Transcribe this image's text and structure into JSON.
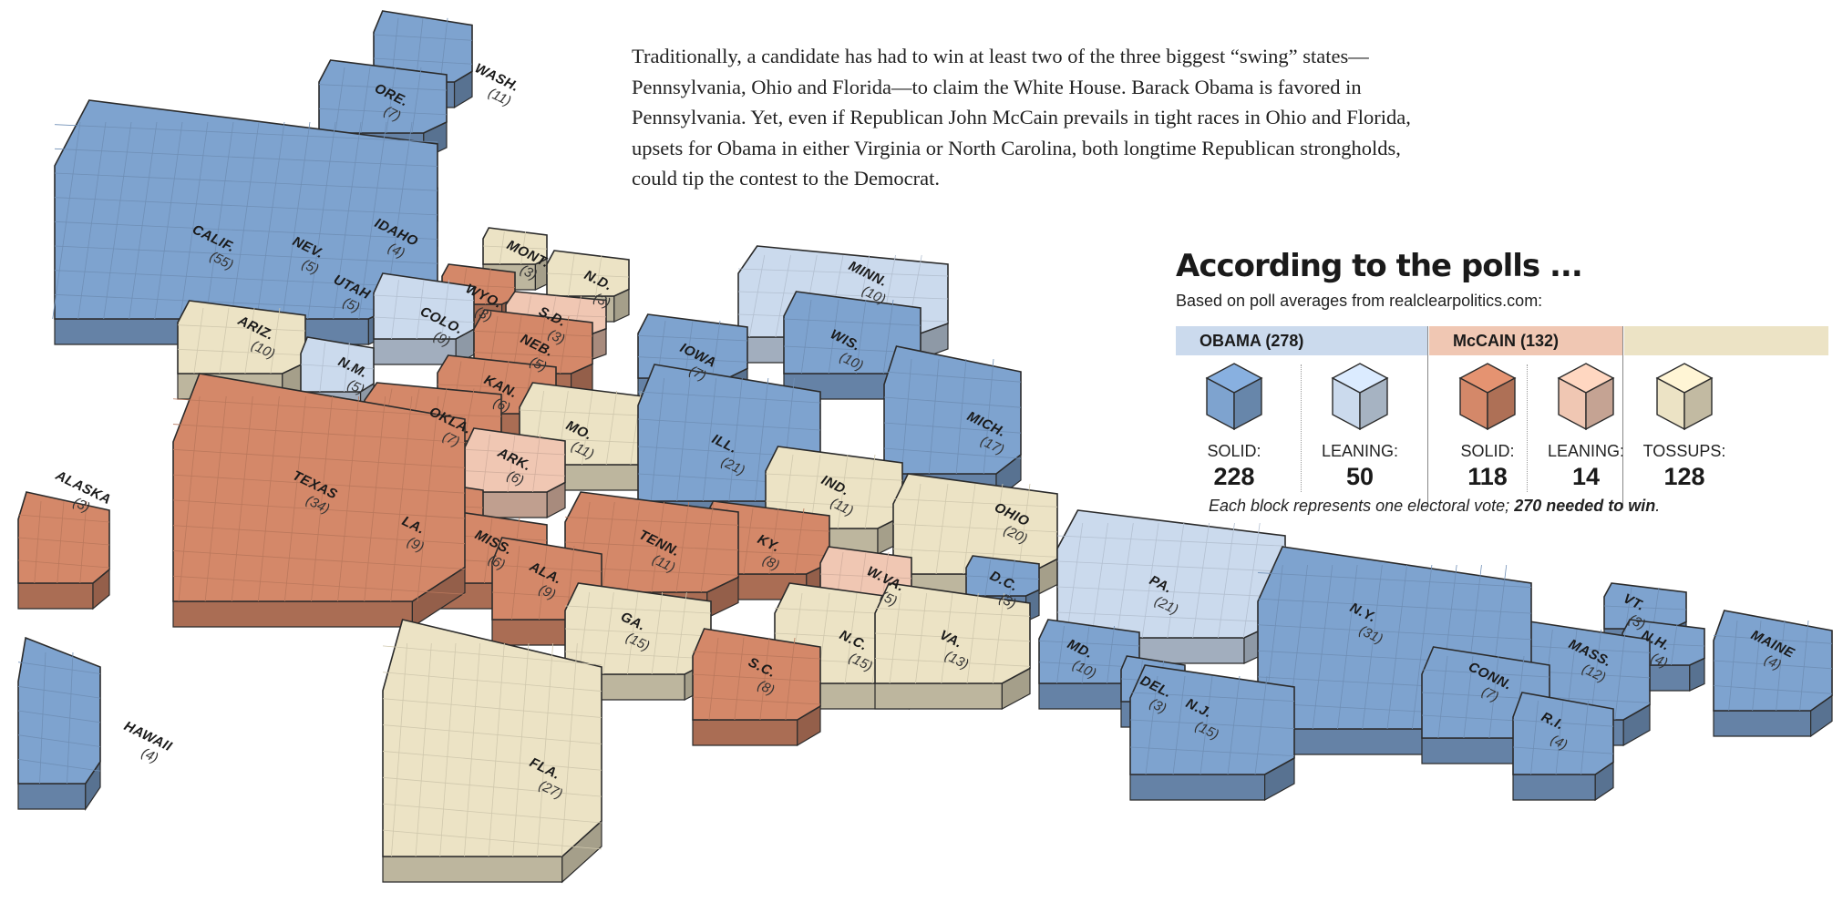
{
  "colors": {
    "solid_obama": "#7ea3cf",
    "leaning_obama": "#cbdaed",
    "solid_mccain": "#d48869",
    "leaning_mccain": "#f0c7b3",
    "tossup": "#ece3c5",
    "edge": "#2b2b2b"
  },
  "intro_text": "Traditionally, a candidate has had to win at least two of the three biggest “swing” states—Pennsylvania, Ohio and Florida—to claim the White House. Barack Obama is favored in Pennsylvania. Yet, even if Republican John McCain prevails in tight races in Ohio and Florida, upsets for Obama in either Virginia or North Carolina, both longtime Republican strongholds, could tip the contest to the Democrat.",
  "legend": {
    "title": "According to the polls ...",
    "subtitle": "Based on poll averages from realclearpolitics.com:",
    "obama_label": "OBAMA (278)",
    "mccain_label": "McCAIN (132)",
    "categories": [
      {
        "label": "SOLID:",
        "value": "228",
        "color_key": "solid_obama"
      },
      {
        "label": "LEANING:",
        "value": "50",
        "color_key": "leaning_obama"
      },
      {
        "label": "SOLID:",
        "value": "118",
        "color_key": "solid_mccain"
      },
      {
        "label": "LEANING:",
        "value": "14",
        "color_key": "leaning_mccain"
      },
      {
        "label": "TOSSUPS:",
        "value": "128",
        "color_key": "tossup"
      }
    ],
    "footnote_prefix": "Each block represents one electoral vote; ",
    "footnote_bold": "270 needed to win",
    "footnote_suffix": "."
  },
  "states": [
    {
      "name": "WASH.",
      "ev": "(11)",
      "status": "solid_obama"
    },
    {
      "name": "ORE.",
      "ev": "(7)",
      "status": "solid_obama"
    },
    {
      "name": "CALIF.",
      "ev": "(55)",
      "status": "solid_obama"
    },
    {
      "name": "NEV.",
      "ev": "(5)",
      "status": "leaning_obama"
    },
    {
      "name": "IDAHO",
      "ev": "(4)",
      "status": "solid_mccain"
    },
    {
      "name": "UTAH",
      "ev": "(5)",
      "status": "solid_mccain"
    },
    {
      "name": "ARIZ.",
      "ev": "(10)",
      "status": "tossup"
    },
    {
      "name": "MONT.",
      "ev": "(3)",
      "status": "tossup"
    },
    {
      "name": "WYO.",
      "ev": "(3)",
      "status": "solid_mccain"
    },
    {
      "name": "COLO.",
      "ev": "(9)",
      "status": "leaning_obama"
    },
    {
      "name": "N.M.",
      "ev": "(5)",
      "status": "leaning_obama"
    },
    {
      "name": "N.D.",
      "ev": "(3)",
      "status": "tossup"
    },
    {
      "name": "S.D.",
      "ev": "(3)",
      "status": "leaning_mccain"
    },
    {
      "name": "NEB.",
      "ev": "(5)",
      "status": "solid_mccain"
    },
    {
      "name": "KAN.",
      "ev": "(6)",
      "status": "solid_mccain"
    },
    {
      "name": "OKLA.",
      "ev": "(7)",
      "status": "solid_mccain"
    },
    {
      "name": "TEXAS",
      "ev": "(34)",
      "status": "solid_mccain"
    },
    {
      "name": "MINN.",
      "ev": "(10)",
      "status": "leaning_obama"
    },
    {
      "name": "IOWA",
      "ev": "(7)",
      "status": "solid_obama"
    },
    {
      "name": "MO.",
      "ev": "(11)",
      "status": "tossup"
    },
    {
      "name": "ARK.",
      "ev": "(6)",
      "status": "leaning_mccain"
    },
    {
      "name": "LA.",
      "ev": "(9)",
      "status": "solid_mccain"
    },
    {
      "name": "WIS.",
      "ev": "(10)",
      "status": "solid_obama"
    },
    {
      "name": "ILL.",
      "ev": "(21)",
      "status": "solid_obama"
    },
    {
      "name": "MICH.",
      "ev": "(17)",
      "status": "solid_obama"
    },
    {
      "name": "IND.",
      "ev": "(11)",
      "status": "tossup"
    },
    {
      "name": "OHIO",
      "ev": "(20)",
      "status": "tossup"
    },
    {
      "name": "KY.",
      "ev": "(8)",
      "status": "solid_mccain"
    },
    {
      "name": "TENN.",
      "ev": "(11)",
      "status": "solid_mccain"
    },
    {
      "name": "MISS.",
      "ev": "(6)",
      "status": "solid_mccain"
    },
    {
      "name": "ALA.",
      "ev": "(9)",
      "status": "solid_mccain"
    },
    {
      "name": "GA.",
      "ev": "(15)",
      "status": "tossup"
    },
    {
      "name": "FLA.",
      "ev": "(27)",
      "status": "tossup"
    },
    {
      "name": "S.C.",
      "ev": "(8)",
      "status": "solid_mccain"
    },
    {
      "name": "N.C.",
      "ev": "(15)",
      "status": "tossup"
    },
    {
      "name": "VA.",
      "ev": "(13)",
      "status": "tossup"
    },
    {
      "name": "W.VA.",
      "ev": "(5)",
      "status": "leaning_mccain"
    },
    {
      "name": "D.C.",
      "ev": "(3)",
      "status": "solid_obama"
    },
    {
      "name": "MD.",
      "ev": "(10)",
      "status": "solid_obama"
    },
    {
      "name": "DEL.",
      "ev": "(3)",
      "status": "solid_obama"
    },
    {
      "name": "PA.",
      "ev": "(21)",
      "status": "leaning_obama"
    },
    {
      "name": "N.J.",
      "ev": "(15)",
      "status": "solid_obama"
    },
    {
      "name": "N.Y.",
      "ev": "(31)",
      "status": "solid_obama"
    },
    {
      "name": "CONN.",
      "ev": "(7)",
      "status": "solid_obama"
    },
    {
      "name": "R.I.",
      "ev": "(4)",
      "status": "solid_obama"
    },
    {
      "name": "MASS.",
      "ev": "(12)",
      "status": "solid_obama"
    },
    {
      "name": "VT.",
      "ev": "(3)",
      "status": "solid_obama"
    },
    {
      "name": "N.H.",
      "ev": "(4)",
      "status": "solid_obama"
    },
    {
      "name": "MAINE",
      "ev": "(4)",
      "status": "solid_obama"
    },
    {
      "name": "ALASKA",
      "ev": "(3)",
      "status": "solid_mccain"
    },
    {
      "name": "HAWAII",
      "ev": "(4)",
      "status": "solid_obama"
    }
  ]
}
